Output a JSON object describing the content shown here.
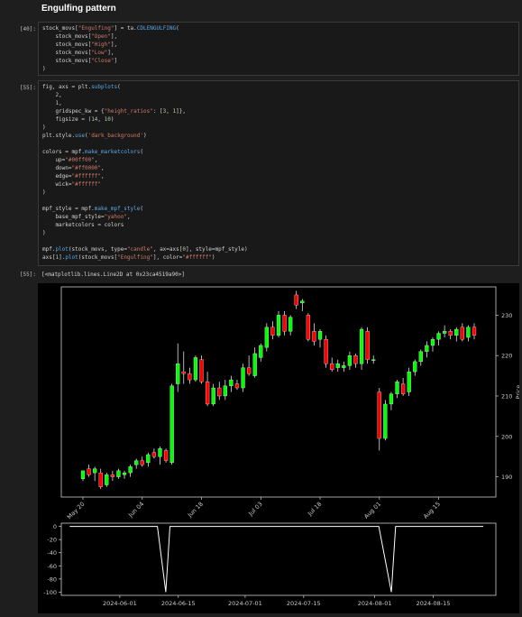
{
  "heading": "Engulfing pattern",
  "cells": [
    {
      "prompt": "[40]:"
    },
    {
      "prompt": "[55]:"
    }
  ],
  "output": {
    "prompt": "[55]:",
    "text": "[<matplotlib.lines.Line2D at 0x23ca4519a90>]"
  },
  "code1_lines": [
    "stock_movs[\"Engulfing\"] = ta.CDLENGULFING(",
    "    stock_movs[\"Open\"],",
    "    stock_movs[\"High\"],",
    "    stock_movs[\"Low\"],",
    "    stock_movs[\"Close\"]",
    ")"
  ],
  "code2_lines": [
    "fig, axs = plt.subplots(",
    "    2,",
    "    1,",
    "    gridspec_kw = {\"height_ratios\": [3, 1]},",
    "    figsize = (14, 10)",
    ")",
    "plt.style.use('dark_background')",
    "",
    "colors = mpf.make_marketcolors(",
    "    up=\"#00ff00\",",
    "    down=\"#ff0000\",",
    "    edge=\"#ffffff\",",
    "    wick=\"#ffffff\"",
    ")",
    "",
    "mpf_style = mpf.make_mpf_style(",
    "    base_mpf_style=\"yahoo\",",
    "    marketcolors = colors",
    ")",
    "",
    "mpf.plot(stock_movs, type=\"candle\", ax=axs[0], style=mpf_style)",
    "axs[1].plot(stock_movs[\"Engulfing\"], color=\"#ffffff\")"
  ],
  "chart_data": [
    {
      "type": "candlestick",
      "ylabel": "Price",
      "y_ticks": [
        190,
        200,
        210,
        220,
        230
      ],
      "ylim": [
        185,
        237
      ],
      "x_tick_labels": [
        "May 20",
        "Jun 04",
        "Jun 18",
        "Jul 03",
        "Jul 18",
        "Aug 01",
        "Aug 15"
      ],
      "x_tick_indices": [
        0,
        10,
        20,
        30,
        40,
        50,
        60
      ],
      "colors": {
        "up": "#00ff00",
        "down": "#ff0000",
        "wick": "#ffffff"
      },
      "candles": [
        {
          "o": 189.5,
          "h": 191.5,
          "l": 189,
          "c": 191.5
        },
        {
          "o": 192,
          "h": 193,
          "l": 190,
          "c": 190.5
        },
        {
          "o": 191,
          "h": 192.5,
          "l": 189,
          "c": 192
        },
        {
          "o": 191,
          "h": 192,
          "l": 187,
          "c": 187.5
        },
        {
          "o": 188,
          "h": 191,
          "l": 187.5,
          "c": 190.5
        },
        {
          "o": 190.5,
          "h": 191.5,
          "l": 189,
          "c": 190
        },
        {
          "o": 190,
          "h": 192,
          "l": 189.5,
          "c": 191.5
        },
        {
          "o": 190.5,
          "h": 191.5,
          "l": 189.5,
          "c": 191
        },
        {
          "o": 191,
          "h": 193,
          "l": 190,
          "c": 192.5
        },
        {
          "o": 193,
          "h": 194.5,
          "l": 192,
          "c": 194
        },
        {
          "o": 194,
          "h": 195,
          "l": 192.5,
          "c": 193
        },
        {
          "o": 193.5,
          "h": 196,
          "l": 192.5,
          "c": 195.5
        },
        {
          "o": 196,
          "h": 197,
          "l": 194.5,
          "c": 195
        },
        {
          "o": 195,
          "h": 197.5,
          "l": 193,
          "c": 197
        },
        {
          "o": 196.5,
          "h": 197,
          "l": 193.5,
          "c": 194
        },
        {
          "o": 193.5,
          "h": 213,
          "l": 193,
          "c": 212.5
        },
        {
          "o": 213,
          "h": 223,
          "l": 211,
          "c": 218
        },
        {
          "o": 216,
          "h": 221,
          "l": 213,
          "c": 215.5
        },
        {
          "o": 215.5,
          "h": 217,
          "l": 213,
          "c": 214
        },
        {
          "o": 214,
          "h": 220,
          "l": 213.5,
          "c": 219.5
        },
        {
          "o": 219,
          "h": 220,
          "l": 213,
          "c": 213.5
        },
        {
          "o": 213.5,
          "h": 216,
          "l": 207.5,
          "c": 208
        },
        {
          "o": 208,
          "h": 213,
          "l": 207.5,
          "c": 212
        },
        {
          "o": 212,
          "h": 213.5,
          "l": 209,
          "c": 210
        },
        {
          "o": 210,
          "h": 214,
          "l": 209,
          "c": 212.5
        },
        {
          "o": 212.5,
          "h": 215,
          "l": 211,
          "c": 214
        },
        {
          "o": 213,
          "h": 214,
          "l": 211.5,
          "c": 212
        },
        {
          "o": 212,
          "h": 218,
          "l": 211,
          "c": 217
        },
        {
          "o": 217,
          "h": 220,
          "l": 215,
          "c": 215.5
        },
        {
          "o": 215,
          "h": 222,
          "l": 214.5,
          "c": 220.5
        },
        {
          "o": 219.5,
          "h": 223,
          "l": 218.5,
          "c": 222.5
        },
        {
          "o": 222,
          "h": 228,
          "l": 221,
          "c": 227
        },
        {
          "o": 227,
          "h": 228.5,
          "l": 224,
          "c": 225
        },
        {
          "o": 225,
          "h": 231,
          "l": 224.5,
          "c": 230
        },
        {
          "o": 230,
          "h": 231,
          "l": 225,
          "c": 226
        },
        {
          "o": 226,
          "h": 230,
          "l": 225,
          "c": 229.5
        },
        {
          "o": 235,
          "h": 236,
          "l": 231.5,
          "c": 232.5
        },
        {
          "o": 233,
          "h": 234,
          "l": 231,
          "c": 233.5
        },
        {
          "o": 230,
          "h": 230.5,
          "l": 223.5,
          "c": 224
        },
        {
          "o": 226,
          "h": 228,
          "l": 222.5,
          "c": 223.5
        },
        {
          "o": 224,
          "h": 226.5,
          "l": 222,
          "c": 226
        },
        {
          "o": 224,
          "h": 225,
          "l": 217,
          "c": 218
        },
        {
          "o": 218,
          "h": 219.5,
          "l": 216,
          "c": 216.5
        },
        {
          "o": 217,
          "h": 219,
          "l": 216,
          "c": 218
        },
        {
          "o": 217,
          "h": 218.5,
          "l": 216,
          "c": 217.5
        },
        {
          "o": 217.5,
          "h": 221,
          "l": 216.5,
          "c": 220
        },
        {
          "o": 220,
          "h": 220.5,
          "l": 217,
          "c": 218
        },
        {
          "o": 218,
          "h": 227,
          "l": 216.5,
          "c": 226.5
        },
        {
          "o": 226,
          "h": 227,
          "l": 218,
          "c": 219
        },
        {
          "o": 219,
          "h": 220,
          "l": 218,
          "c": 219
        },
        {
          "o": 211,
          "h": 212,
          "l": 196.5,
          "c": 199.5
        },
        {
          "o": 199.5,
          "h": 209,
          "l": 199,
          "c": 208
        },
        {
          "o": 208,
          "h": 211,
          "l": 206.5,
          "c": 210.5
        },
        {
          "o": 210.5,
          "h": 214,
          "l": 209.5,
          "c": 213.5
        },
        {
          "o": 213,
          "h": 214.5,
          "l": 210,
          "c": 210.5
        },
        {
          "o": 211,
          "h": 217,
          "l": 210,
          "c": 216
        },
        {
          "o": 216,
          "h": 219,
          "l": 215,
          "c": 218.5
        },
        {
          "o": 218.5,
          "h": 221.5,
          "l": 217.5,
          "c": 221
        },
        {
          "o": 221,
          "h": 223.5,
          "l": 219.5,
          "c": 222.5
        },
        {
          "o": 222.5,
          "h": 224.5,
          "l": 221,
          "c": 224
        },
        {
          "o": 224,
          "h": 226,
          "l": 222.5,
          "c": 225.5
        },
        {
          "o": 225.5,
          "h": 227.5,
          "l": 224.5,
          "c": 226
        },
        {
          "o": 226,
          "h": 226.5,
          "l": 224,
          "c": 225
        },
        {
          "o": 225,
          "h": 227,
          "l": 223.5,
          "c": 226.5
        },
        {
          "o": 227,
          "h": 228,
          "l": 223.5,
          "c": 224
        },
        {
          "o": 224.5,
          "h": 227.5,
          "l": 223.5,
          "c": 227
        },
        {
          "o": 227,
          "h": 228,
          "l": 224,
          "c": 225
        }
      ]
    },
    {
      "type": "line",
      "color": "#ffffff",
      "x_tick_labels": [
        "2024-06-01",
        "2024-06-15",
        "2024-07-01",
        "2024-07-15",
        "2024-08-01",
        "2024-08-15"
      ],
      "y_ticks": [
        0,
        -20,
        -40,
        -60,
        -80,
        -100
      ],
      "ylim": [
        -105,
        5
      ],
      "xlim": [
        "2024-05-18",
        "2024-08-30"
      ],
      "points": [
        {
          "x": "2024-05-20",
          "y": 0
        },
        {
          "x": "2024-06-10",
          "y": 0
        },
        {
          "x": "2024-06-12",
          "y": -100
        },
        {
          "x": "2024-06-13",
          "y": 0
        },
        {
          "x": "2024-08-02",
          "y": 0
        },
        {
          "x": "2024-08-05",
          "y": -100
        },
        {
          "x": "2024-08-06",
          "y": 0
        },
        {
          "x": "2024-08-27",
          "y": 0
        }
      ]
    }
  ]
}
